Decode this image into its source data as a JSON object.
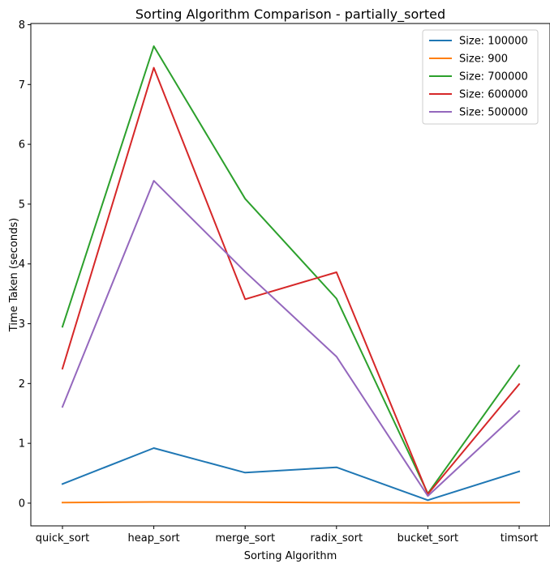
{
  "chart_data": {
    "type": "line",
    "title": "Sorting Algorithm Comparison - partially_sorted",
    "xlabel": "Sorting Algorithm",
    "ylabel": "Time Taken (seconds)",
    "categories": [
      "quick_sort",
      "heap_sort",
      "merge_sort",
      "radix_sort",
      "bucket_sort",
      "timsort"
    ],
    "ylim": [
      -0.38,
      8.02
    ],
    "yticks": [
      0,
      1,
      2,
      3,
      4,
      5,
      6,
      7,
      8
    ],
    "grid": false,
    "legend_position": "top-right",
    "series": [
      {
        "name": "Size: 100000",
        "color": "#1f77b4",
        "values": [
          0.32,
          0.92,
          0.51,
          0.6,
          0.05,
          0.53
        ]
      },
      {
        "name": "Size: 900",
        "color": "#ff7f0e",
        "values": [
          0.01,
          0.02,
          0.015,
          0.01,
          0.005,
          0.01
        ]
      },
      {
        "name": "Size: 700000",
        "color": "#2ca02c",
        "values": [
          2.95,
          7.64,
          5.09,
          3.42,
          0.16,
          2.3
        ]
      },
      {
        "name": "Size: 600000",
        "color": "#d62728",
        "values": [
          2.25,
          7.28,
          3.41,
          3.86,
          0.15,
          1.99
        ]
      },
      {
        "name": "Size: 500000",
        "color": "#9467bd",
        "values": [
          1.61,
          5.39,
          3.87,
          2.45,
          0.12,
          1.54
        ]
      }
    ]
  }
}
